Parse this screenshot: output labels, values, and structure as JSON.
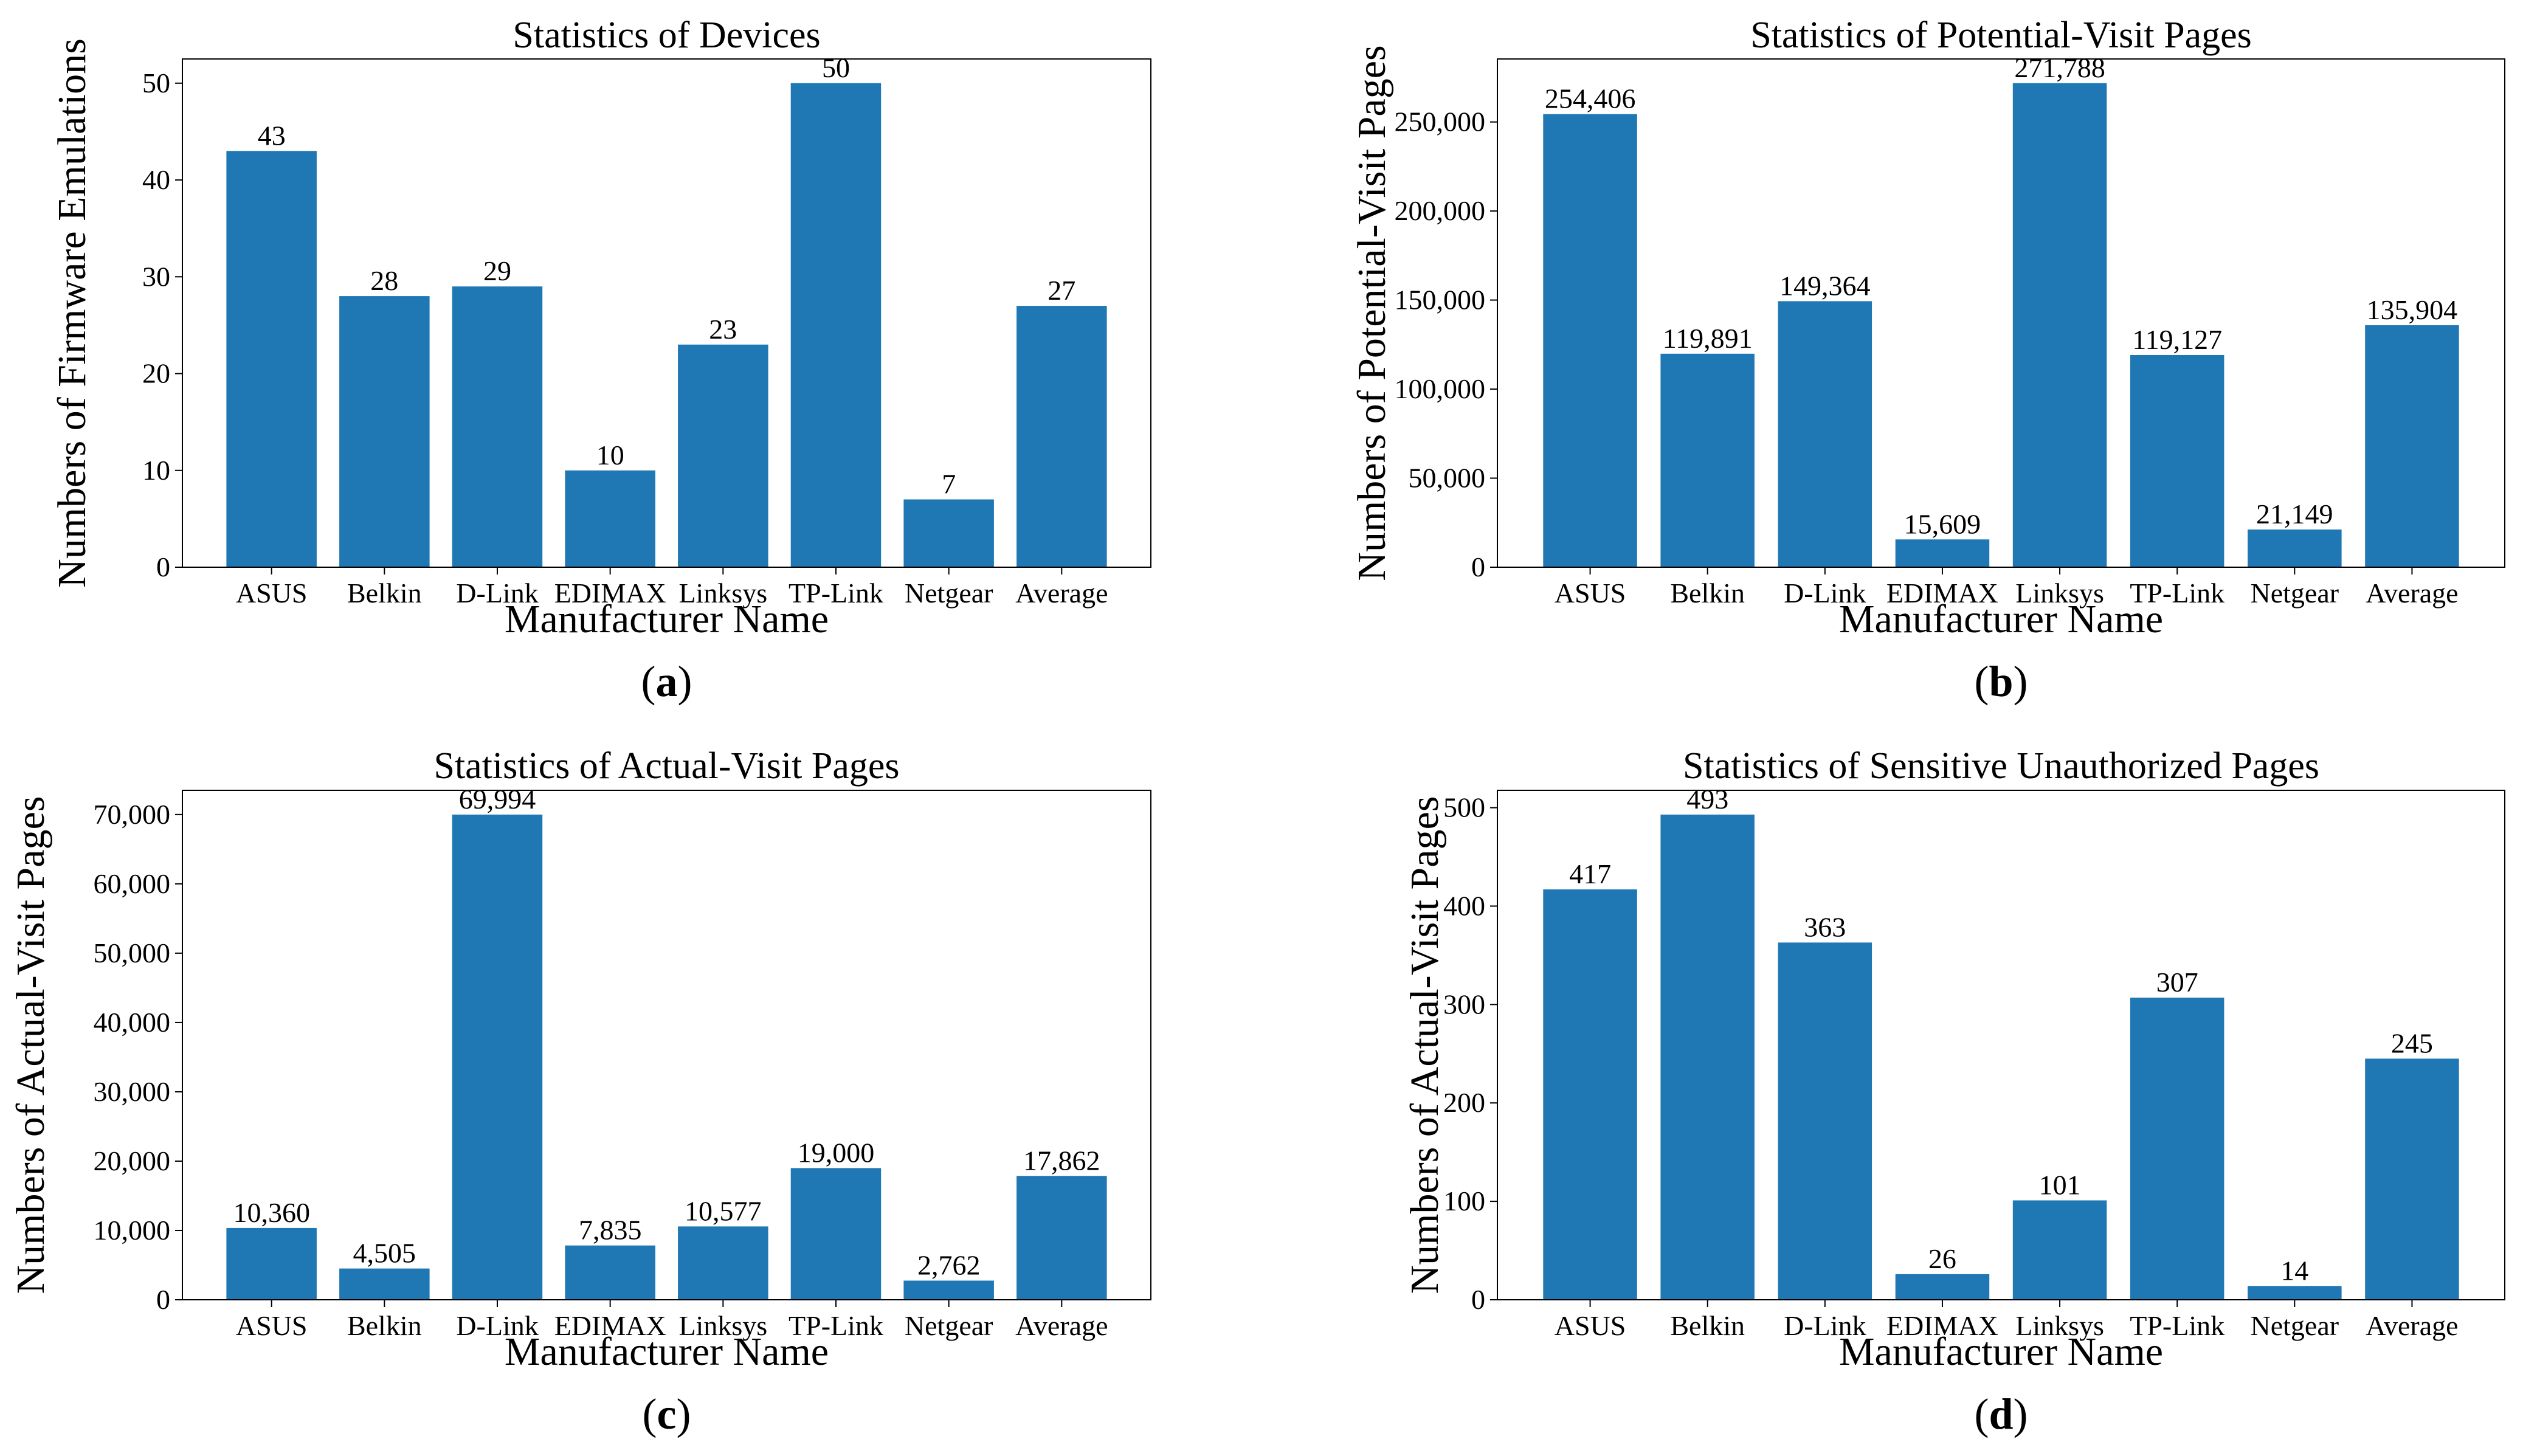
{
  "chart_data": [
    {
      "type": "bar",
      "panel": "a",
      "title": "Statistics of Devices",
      "xlabel": "Manufacturer Name",
      "ylabel": "Numbers of Firmware Emulations",
      "categories": [
        "ASUS",
        "Belkin",
        "D-Link",
        "EDIMAX",
        "Linksys",
        "TP-Link",
        "Netgear",
        "Average"
      ],
      "values": [
        43,
        28,
        29,
        10,
        23,
        50,
        7,
        27
      ],
      "value_labels": [
        "43",
        "28",
        "29",
        "10",
        "23",
        "50",
        "7",
        "27"
      ],
      "ylim": [
        0,
        52.5
      ],
      "yticks": [
        0,
        10,
        20,
        30,
        40,
        50
      ],
      "ytick_labels": [
        "0",
        "10",
        "20",
        "30",
        "40",
        "50"
      ],
      "color": "#1f77b4"
    },
    {
      "type": "bar",
      "panel": "b",
      "title": "Statistics of Potential-Visit Pages",
      "xlabel": "Manufacturer Name",
      "ylabel": "Numbers of Potential-Visit Pages",
      "categories": [
        "ASUS",
        "Belkin",
        "D-Link",
        "EDIMAX",
        "Linksys",
        "TP-Link",
        "Netgear",
        "Average"
      ],
      "values": [
        254406,
        119891,
        149364,
        15609,
        271788,
        119127,
        21149,
        135904
      ],
      "value_labels": [
        "254,406",
        "119,891",
        "149,364",
        "15,609",
        "271,788",
        "119,127",
        "21,149",
        "135,904"
      ],
      "ylim": [
        0,
        285377
      ],
      "yticks": [
        0,
        50000,
        100000,
        150000,
        200000,
        250000
      ],
      "ytick_labels": [
        "0",
        "50,000",
        "100,000",
        "150,000",
        "200,000",
        "250,000"
      ],
      "color": "#1f77b4"
    },
    {
      "type": "bar",
      "panel": "c",
      "title": "Statistics of Actual-Visit Pages",
      "xlabel": "Manufacturer Name",
      "ylabel": "Numbers of Actual-Visit Pages",
      "categories": [
        "ASUS",
        "Belkin",
        "D-Link",
        "EDIMAX",
        "Linksys",
        "TP-Link",
        "Netgear",
        "Average"
      ],
      "values": [
        10360,
        4505,
        69994,
        7835,
        10577,
        19000,
        2762,
        17862
      ],
      "value_labels": [
        "10,360",
        "4,505",
        "69,994",
        "7,835",
        "10,577",
        "19,000",
        "2,762",
        "17,862"
      ],
      "ylim": [
        0,
        73494
      ],
      "yticks": [
        0,
        10000,
        20000,
        30000,
        40000,
        50000,
        60000,
        70000
      ],
      "ytick_labels": [
        "0",
        "10,000",
        "20,000",
        "30,000",
        "40,000",
        "50,000",
        "60,000",
        "70,000"
      ],
      "color": "#1f77b4"
    },
    {
      "type": "bar",
      "panel": "d",
      "title": "Statistics of Sensitive Unauthorized Pages",
      "xlabel": "Manufacturer Name",
      "ylabel": "Numbers of Actual-Visit Pages",
      "categories": [
        "ASUS",
        "Belkin",
        "D-Link",
        "EDIMAX",
        "Linksys",
        "TP-Link",
        "Netgear",
        "Average"
      ],
      "values": [
        417,
        493,
        363,
        26,
        101,
        307,
        14,
        245
      ],
      "value_labels": [
        "417",
        "493",
        "363",
        "26",
        "101",
        "307",
        "14",
        "245"
      ],
      "ylim": [
        0,
        517.65
      ],
      "yticks": [
        0,
        100,
        200,
        300,
        400,
        500
      ],
      "ytick_labels": [
        "0",
        "100",
        "200",
        "300",
        "400",
        "500"
      ],
      "color": "#1f77b4"
    }
  ],
  "panel_labels": [
    {
      "open": "(",
      "letter": "a",
      "close": ")"
    },
    {
      "open": "(",
      "letter": "b",
      "close": ")"
    },
    {
      "open": "(",
      "letter": "c",
      "close": ")"
    },
    {
      "open": "(",
      "letter": "d",
      "close": ")"
    }
  ]
}
